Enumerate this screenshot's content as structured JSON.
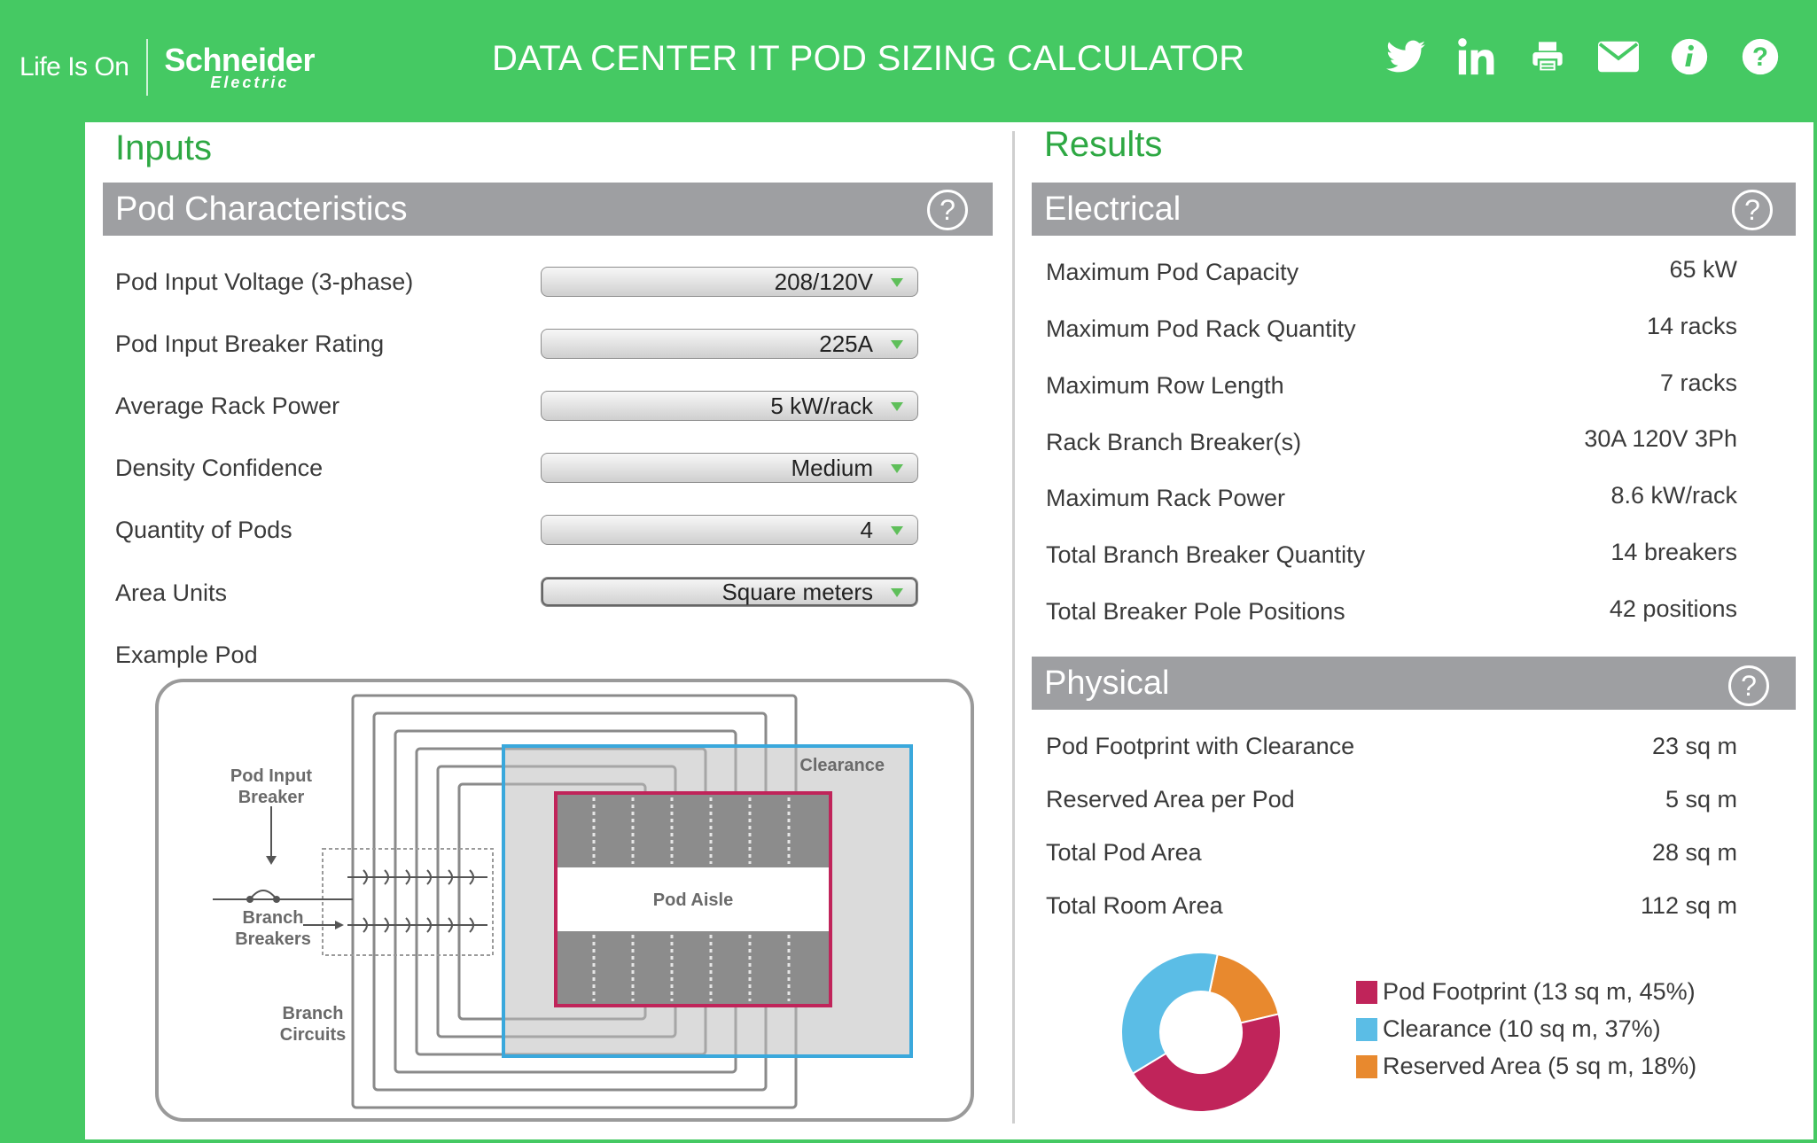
{
  "header": {
    "logo_tagline": "Life Is On",
    "logo_brand": "Schneider",
    "logo_sub": "Electric",
    "title": "DATA CENTER IT POD SIZING CALCULATOR",
    "icons": [
      "twitter-icon",
      "linkedin-icon",
      "print-icon",
      "email-icon",
      "info-icon",
      "help-icon"
    ]
  },
  "inputs": {
    "heading": "Inputs",
    "section_title": "Pod Characteristics",
    "help": "?",
    "fields": [
      {
        "label": "Pod Input Voltage (3-phase)",
        "value": "208/120V"
      },
      {
        "label": "Pod Input Breaker Rating",
        "value": "225A"
      },
      {
        "label": "Average Rack Power",
        "value": "5 kW/rack"
      },
      {
        "label": "Density Confidence",
        "value": "Medium"
      },
      {
        "label": "Quantity of Pods",
        "value": "4"
      },
      {
        "label": "Area Units",
        "value": "Square meters"
      }
    ],
    "example_label": "Example Pod",
    "diagram": {
      "pod_input_breaker_1": "Pod Input",
      "pod_input_breaker_2": "Breaker",
      "branch_breakers_1": "Branch",
      "branch_breakers_2": "Breakers",
      "branch_circuits_1": "Branch",
      "branch_circuits_2": "Circuits",
      "clearance": "Clearance",
      "pod_aisle": "Pod Aisle"
    }
  },
  "results": {
    "heading": "Results",
    "electrical_title": "Electrical",
    "electrical": [
      {
        "label": "Maximum Pod Capacity",
        "value": "65 kW"
      },
      {
        "label": "Maximum Pod Rack Quantity",
        "value": "14 racks"
      },
      {
        "label": "Maximum Row Length",
        "value": "7 racks"
      },
      {
        "label": "Rack Branch Breaker(s)",
        "value": "30A 120V 3Ph"
      },
      {
        "label": "Maximum Rack Power",
        "value": "8.6 kW/rack"
      },
      {
        "label": "Total Branch Breaker Quantity",
        "value": "14 breakers"
      },
      {
        "label": "Total Breaker Pole Positions",
        "value": "42 positions"
      }
    ],
    "physical_title": "Physical",
    "physical": [
      {
        "label": "Pod Footprint with Clearance",
        "value": "23 sq m"
      },
      {
        "label": "Reserved Area per Pod",
        "value": "5 sq m"
      },
      {
        "label": "Total Pod Area",
        "value": "28 sq m"
      },
      {
        "label": "Total Room Area",
        "value": "112 sq m"
      }
    ]
  },
  "colors": {
    "green": "#45c963",
    "pod": "#c0245a",
    "clearance": "#5bbde6",
    "reserved": "#e8892e"
  },
  "chart_data": {
    "type": "pie",
    "donut": true,
    "title": "",
    "series": [
      {
        "name": "Pod Footprint",
        "value": 45,
        "area": 13,
        "color": "#c0245a",
        "legend": "Pod Footprint (13 sq m, 45%)"
      },
      {
        "name": "Clearance",
        "value": 37,
        "area": 10,
        "color": "#5bbde6",
        "legend": "Clearance (10 sq m, 37%)"
      },
      {
        "name": "Reserved Area",
        "value": 18,
        "area": 5,
        "color": "#e8892e",
        "legend": "Reserved Area (5 sq m, 18%)"
      }
    ]
  }
}
